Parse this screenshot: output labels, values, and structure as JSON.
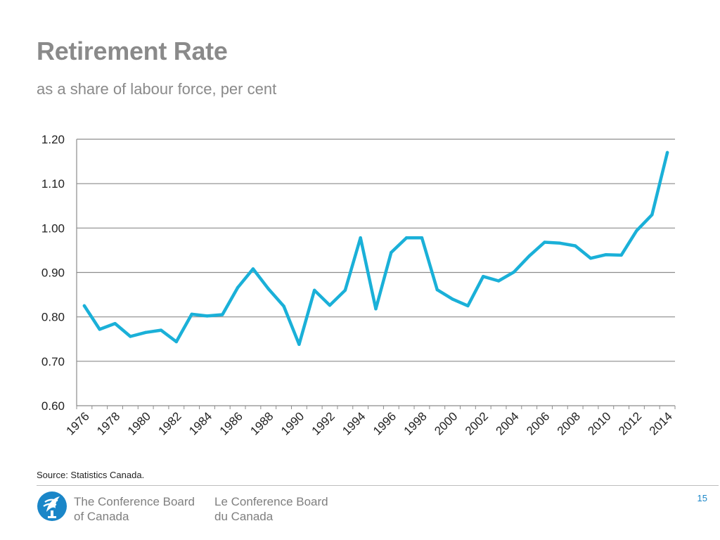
{
  "slide": {
    "title": "Retirement Rate",
    "subtitle": "as a share of labour force, per cent",
    "source": "Source: Statistics Canada.",
    "page_number": "15"
  },
  "footer": {
    "org_en_line1": "The Conference Board",
    "org_en_line2": "of Canada",
    "org_fr_line1": "Le Conference Board",
    "org_fr_line2": "du Canada",
    "logo_icon": "torch-icon",
    "logo_color": "#1a86c8"
  },
  "chart_data": {
    "type": "line",
    "title": "",
    "xlabel": "",
    "ylabel": "",
    "ylim": [
      0.6,
      1.2
    ],
    "yticks": [
      "0.60",
      "0.70",
      "0.80",
      "0.90",
      "1.00",
      "1.10",
      "1.20"
    ],
    "grid": true,
    "x_tick_labels": [
      "1976",
      "1978",
      "1980",
      "1982",
      "1984",
      "1986",
      "1988",
      "1990",
      "1992",
      "1994",
      "1996",
      "1998",
      "2000",
      "2002",
      "2004",
      "2006",
      "2008",
      "2010",
      "2012",
      "2014"
    ],
    "line_color": "#1ab0d8",
    "series": [
      {
        "x": [
          1976,
          1977,
          1978,
          1979,
          1980,
          1981,
          1982,
          1983,
          1984,
          1985,
          1986,
          1987,
          1988,
          1989,
          1990,
          1991,
          1992,
          1993,
          1994,
          1995,
          1996,
          1997,
          1998,
          1999,
          2000,
          2001,
          2002,
          2003,
          2004,
          2005,
          2006,
          2007,
          2008,
          2009,
          2010,
          2011,
          2012,
          2013,
          2014
        ],
        "values": [
          0.825,
          0.772,
          0.785,
          0.756,
          0.765,
          0.77,
          0.744,
          0.806,
          0.802,
          0.805,
          0.866,
          0.908,
          0.863,
          0.824,
          0.738,
          0.86,
          0.826,
          0.86,
          0.978,
          0.818,
          0.945,
          0.978,
          0.978,
          0.861,
          0.84,
          0.825,
          0.891,
          0.881,
          0.901,
          0.937,
          0.968,
          0.966,
          0.96,
          0.932,
          0.94,
          0.939,
          0.994,
          1.03,
          1.17
        ]
      }
    ]
  }
}
